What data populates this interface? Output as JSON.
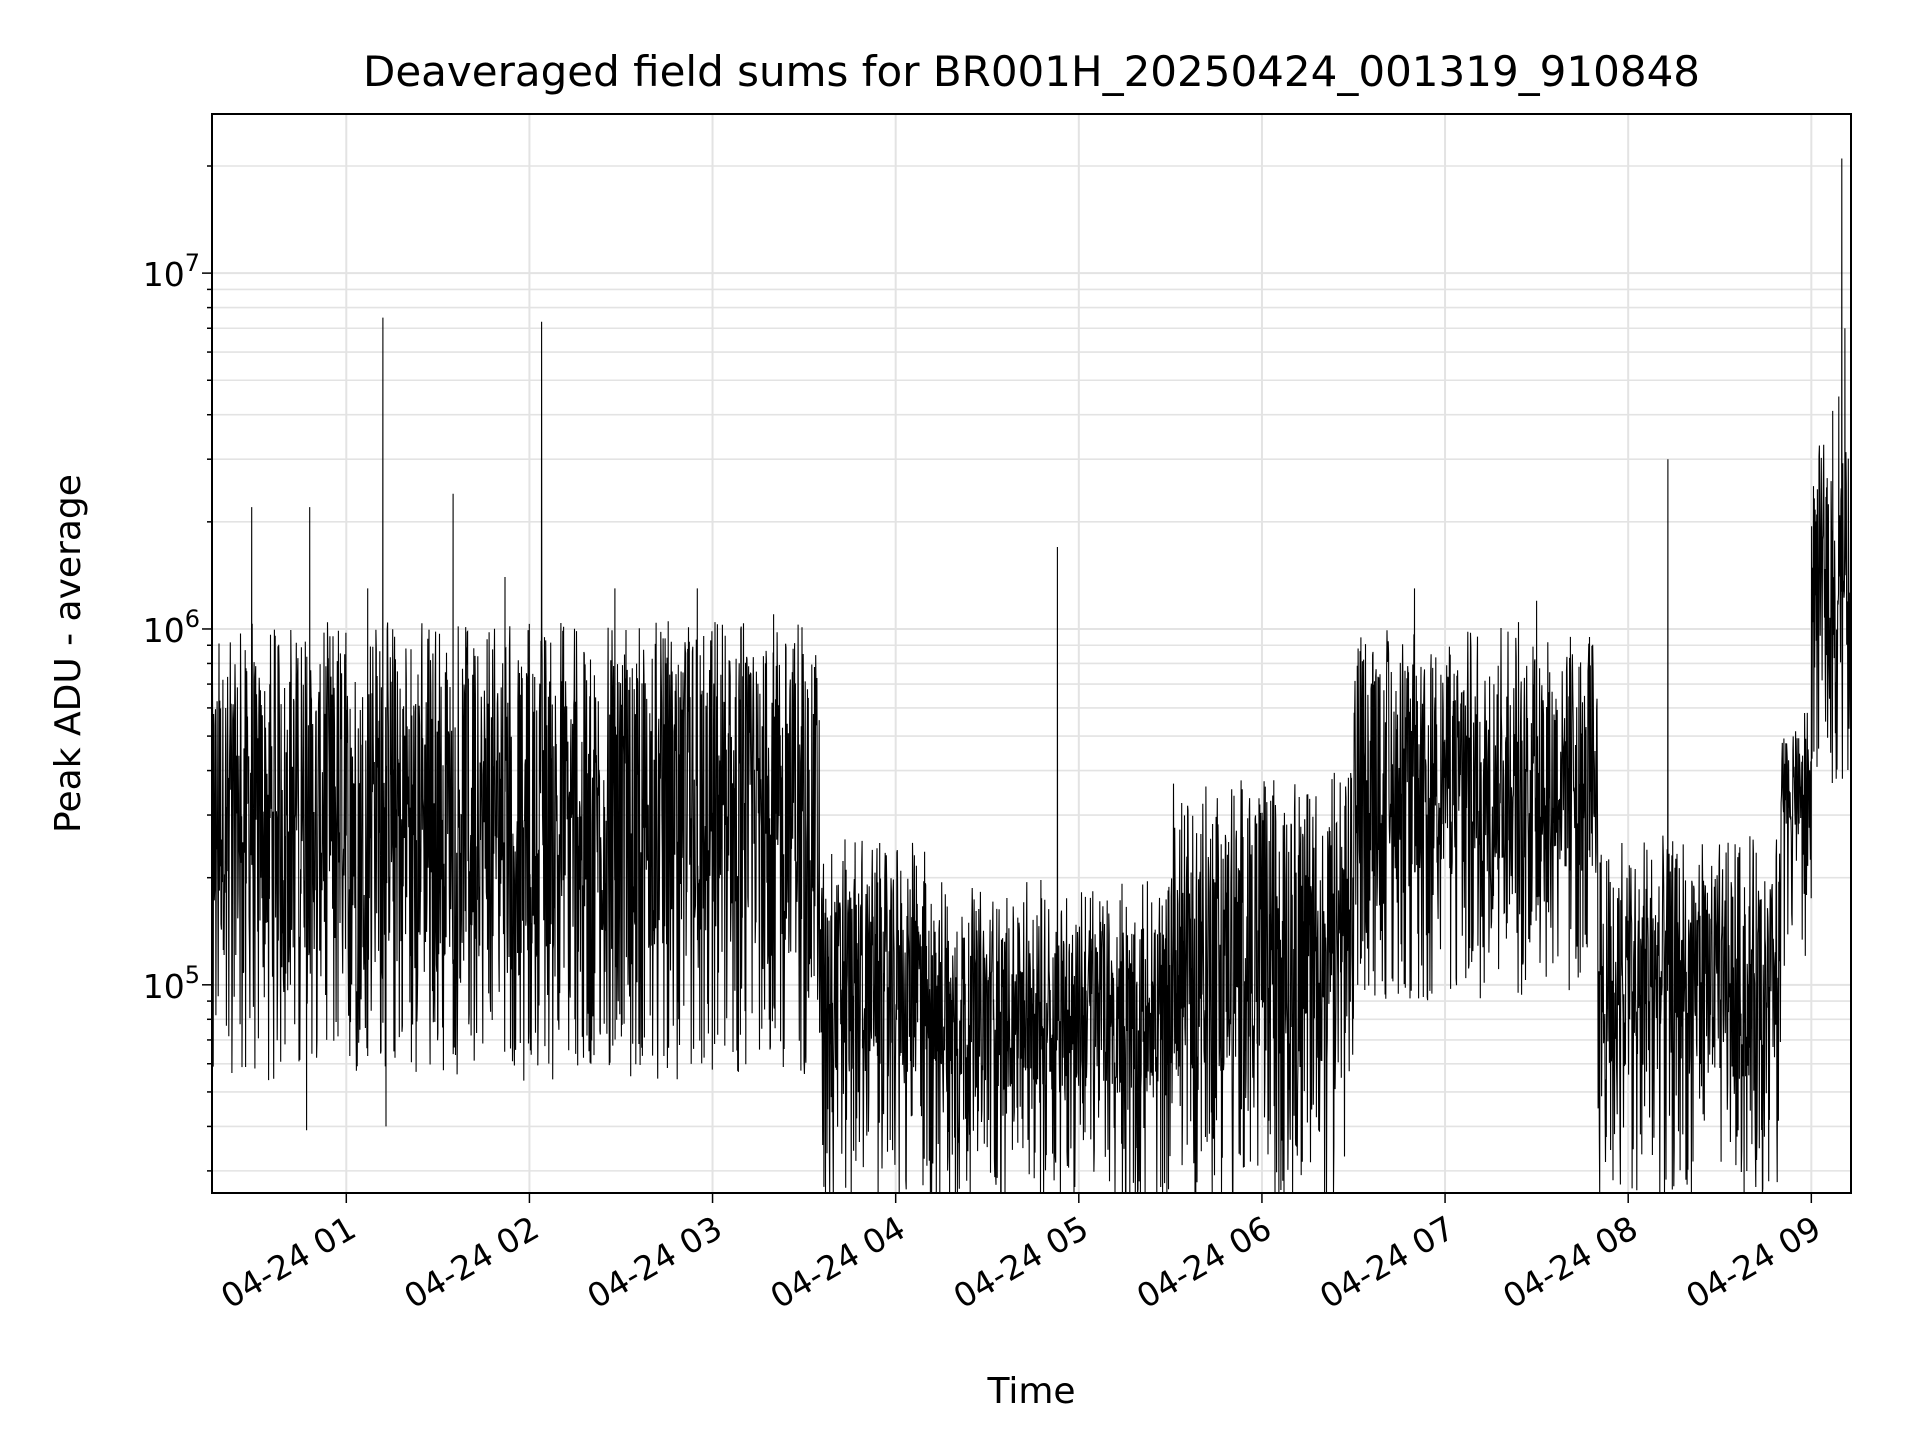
{
  "chart_data": {
    "type": "line",
    "title": "Deaveraged field sums for BR001H_20250424_001319_910848",
    "xlabel": "Time",
    "ylabel": "Peak ADU - average",
    "xlim": [
      "2025-04-24T00:16:00",
      "2025-04-24T09:13:00"
    ],
    "ylim": [
      26000,
      28000000
    ],
    "y_scale": "log",
    "grid": true,
    "legend": "none",
    "x_ticks": [
      "04-24 01",
      "04-24 02",
      "04-24 03",
      "04-24 04",
      "04-24 05",
      "04-24 06",
      "04-24 07",
      "04-24 08",
      "04-24 09"
    ],
    "y_ticks": [
      {
        "base": "10",
        "exp": "5",
        "value": 100000
      },
      {
        "base": "10",
        "exp": "6",
        "value": 1000000
      },
      {
        "base": "10",
        "exp": "7",
        "value": 10000000
      }
    ],
    "series": [
      {
        "color": "#000000",
        "baseline_segments": [
          {
            "start": "2025-04-24T00:16:00",
            "end": "2025-04-24T03:35:00",
            "low": 120000,
            "high": 800000
          },
          {
            "start": "2025-04-24T03:35:00",
            "end": "2025-04-24T04:10:00",
            "low": 55000,
            "high": 200000
          },
          {
            "start": "2025-04-24T04:10:00",
            "end": "2025-04-24T05:30:00",
            "low": 50000,
            "high": 150000
          },
          {
            "start": "2025-04-24T05:30:00",
            "end": "2025-04-24T06:30:00",
            "low": 55000,
            "high": 300000
          },
          {
            "start": "2025-04-24T06:30:00",
            "end": "2025-04-24T07:50:00",
            "low": 200000,
            "high": 800000
          },
          {
            "start": "2025-04-24T07:50:00",
            "end": "2025-04-24T08:50:00",
            "low": 55000,
            "high": 200000
          },
          {
            "start": "2025-04-24T08:50:00",
            "end": "2025-04-24T09:00:00",
            "low": 250000,
            "high": 500000
          },
          {
            "start": "2025-04-24T09:00:00",
            "end": "2025-04-24T09:13:00",
            "low": 800000,
            "high": 2500000
          }
        ],
        "peaks": [
          {
            "x": "2025-04-24T00:29:00",
            "y": 2200000
          },
          {
            "x": "2025-04-24T00:48:00",
            "y": 2200000
          },
          {
            "x": "2025-04-24T01:07:00",
            "y": 1300000
          },
          {
            "x": "2025-04-24T01:12:00",
            "y": 7500000
          },
          {
            "x": "2025-04-24T01:35:00",
            "y": 2400000
          },
          {
            "x": "2025-04-24T01:52:00",
            "y": 1400000
          },
          {
            "x": "2025-04-24T02:04:00",
            "y": 7300000
          },
          {
            "x": "2025-04-24T02:28:00",
            "y": 1300000
          },
          {
            "x": "2025-04-24T02:55:00",
            "y": 1300000
          },
          {
            "x": "2025-04-24T03:20:00",
            "y": 1100000
          },
          {
            "x": "2025-04-24T04:53:00",
            "y": 1700000
          },
          {
            "x": "2025-04-24T06:50:00",
            "y": 1300000
          },
          {
            "x": "2025-04-24T07:30:00",
            "y": 1200000
          },
          {
            "x": "2025-04-24T08:13:00",
            "y": 3000000
          },
          {
            "x": "2025-04-24T09:05:00",
            "y": 2500000
          },
          {
            "x": "2025-04-24T09:07:00",
            "y": 4100000
          },
          {
            "x": "2025-04-24T09:09:00",
            "y": 4500000
          },
          {
            "x": "2025-04-24T09:10:00",
            "y": 21000000
          },
          {
            "x": "2025-04-24T09:11:00",
            "y": 7000000
          }
        ],
        "dips": [
          {
            "x": "2025-04-24T00:47:00",
            "y": 39000
          },
          {
            "x": "2025-04-24T01:13:00",
            "y": 40000
          },
          {
            "x": "2025-04-24T04:30:00",
            "y": 35000
          },
          {
            "x": "2025-04-24T04:40:00",
            "y": 36000
          },
          {
            "x": "2025-04-24T06:11:00",
            "y": 37000
          },
          {
            "x": "2025-04-24T08:04:00",
            "y": 38000
          },
          {
            "x": "2025-04-24T08:36:00",
            "y": 39000
          }
        ]
      }
    ]
  }
}
